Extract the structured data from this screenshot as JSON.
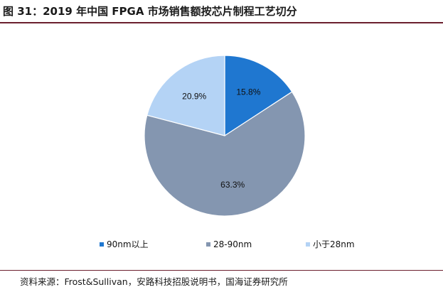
{
  "title": "图 31：2019 年中国 FPGA 市场销售额按芯片制程工艺切分",
  "source": "资料来源：Frost&Sullivan，安路科技招股说明书，国海证券研究所",
  "chart_data": {
    "type": "pie",
    "start_angle_deg": 90,
    "direction": "clockwise",
    "legend_position": "bottom",
    "slices": [
      {
        "label": "90nm以上",
        "value": 15.8,
        "display": "15.8%",
        "color": "#1f77d0"
      },
      {
        "label": "28-90nm",
        "value": 63.3,
        "display": "63.3%",
        "color": "#8496b0"
      },
      {
        "label": "小于28nm",
        "value": 20.9,
        "display": "20.9%",
        "color": "#b4d3f5"
      }
    ]
  }
}
